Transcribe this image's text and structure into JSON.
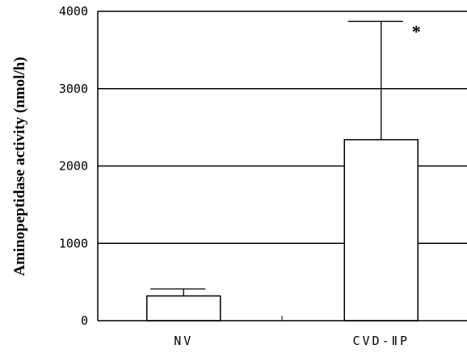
{
  "chart_data": {
    "type": "bar",
    "ylabel": "Aminopeptidase activity (nmol/h)",
    "xlabel": "",
    "categories": [
      "NV",
      "CVD-ⅡP"
    ],
    "values": [
      320,
      2340
    ],
    "error_upper": [
      410,
      3870
    ],
    "ylim": [
      0,
      4000
    ],
    "yticks": [
      "0",
      "1000",
      "2000",
      "3000",
      "4000"
    ],
    "annotations": [
      {
        "category": "CVD-ⅡP",
        "text": "*"
      }
    ],
    "grid": "horizontal",
    "legend": "none",
    "colors": {
      "bar_fill": "#ffffff",
      "stroke": "#000000"
    }
  }
}
